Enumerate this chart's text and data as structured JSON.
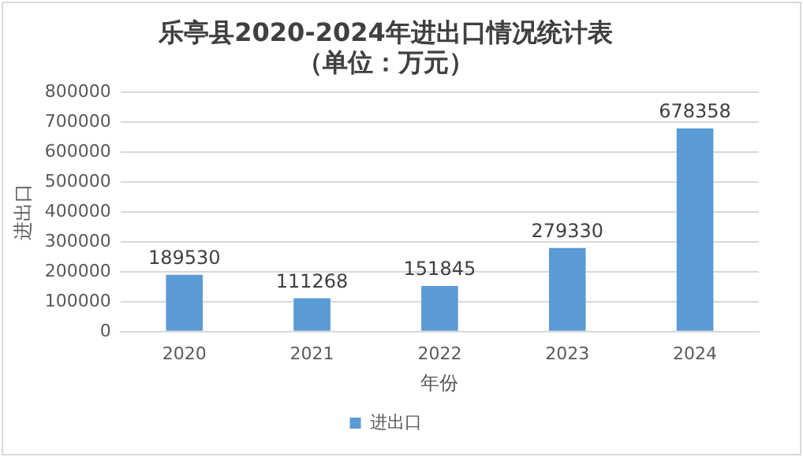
{
  "chart_data": {
    "type": "bar",
    "title": "乐亭县2020-2024年进出口情况统计表",
    "subtitle": "（单位：万元）",
    "xlabel": "年份",
    "ylabel": "进出口",
    "categories": [
      "2020",
      "2021",
      "2022",
      "2023",
      "2024"
    ],
    "series": [
      {
        "name": "进出口",
        "color": "#5b9bd5",
        "values": [
          189530,
          111268,
          151845,
          279330,
          678358
        ]
      }
    ],
    "ylim": [
      0,
      800000
    ],
    "yticks": [
      0,
      100000,
      200000,
      300000,
      400000,
      500000,
      600000,
      700000,
      800000
    ],
    "grid": "y",
    "legend": "bottom",
    "data_labels": true
  }
}
